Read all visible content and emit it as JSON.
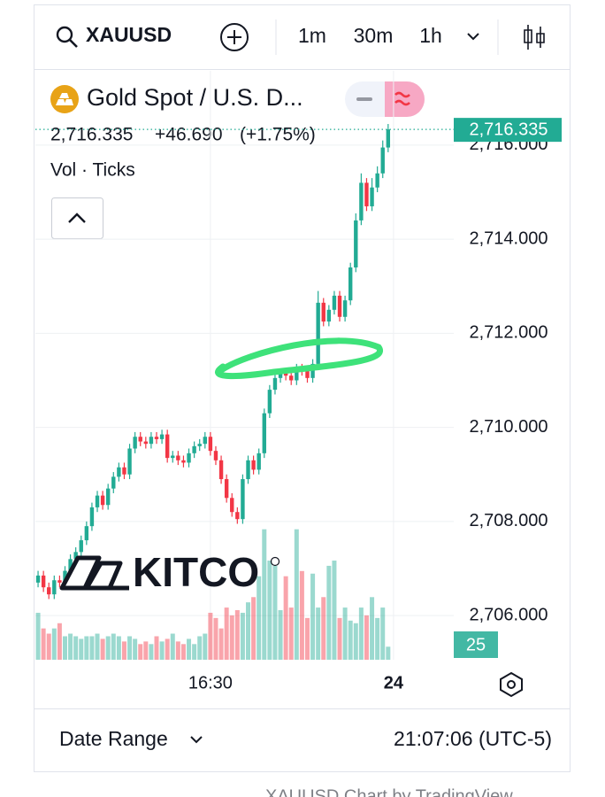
{
  "toolbar": {
    "symbol": "XAUUSD",
    "intervals": [
      "1m",
      "30m",
      "1h"
    ],
    "active_interval": 0
  },
  "chart_data": {
    "type": "candlestick",
    "title": "Gold Spot / U.S. D...",
    "legend": {
      "price": "2,716.335",
      "change": "+46.690",
      "change_pct": "(+1.75%)"
    },
    "volume_title": "Vol · Ticks",
    "watermark": "KITCO",
    "up_color": "#22ab94",
    "down_color": "#f23645",
    "open": [
      2706.7,
      2706.85,
      2706.6,
      2706.45,
      2706.75,
      2706.7,
      2706.95,
      2707.2,
      2707.35,
      2707.6,
      2707.9,
      2708.3,
      2708.55,
      2708.35,
      2708.7,
      2708.95,
      2709.15,
      2709.0,
      2709.55,
      2709.8,
      2709.7,
      2709.65,
      2709.8,
      2709.75,
      2709.85,
      2709.35,
      2709.4,
      2709.3,
      2709.25,
      2709.45,
      2709.6,
      2709.65,
      2709.8,
      2709.5,
      2709.3,
      2708.9,
      2708.5,
      2708.2,
      2708.05,
      2708.9,
      2709.3,
      2709.1,
      2709.45,
      2710.3,
      2710.8,
      2711.05,
      2711.15,
      2711.1,
      2711.0,
      2711.25,
      2711.2,
      2711.05,
      2711.35,
      2712.65,
      2712.25,
      2712.5,
      2712.8,
      2712.35,
      2712.7,
      2713.4,
      2714.4,
      2715.2,
      2714.7,
      2715.1,
      2715.4,
      2715.95
    ],
    "high": [
      2706.95,
      2706.95,
      2706.7,
      2706.85,
      2706.85,
      2707.05,
      2707.3,
      2707.45,
      2707.7,
      2708.0,
      2708.4,
      2708.65,
      2708.65,
      2708.8,
      2709.05,
      2709.25,
      2709.25,
      2709.65,
      2709.9,
      2709.9,
      2709.8,
      2709.9,
      2709.9,
      2709.95,
      2709.95,
      2709.5,
      2709.5,
      2709.4,
      2709.55,
      2709.7,
      2709.75,
      2709.9,
      2709.9,
      2709.6,
      2709.4,
      2709.0,
      2708.6,
      2708.3,
      2709.0,
      2709.4,
      2709.4,
      2709.55,
      2710.4,
      2710.9,
      2711.15,
      2711.25,
      2711.25,
      2711.2,
      2711.35,
      2711.35,
      2711.3,
      2711.45,
      2712.9,
      2712.75,
      2712.6,
      2712.9,
      2712.9,
      2712.8,
      2713.5,
      2714.55,
      2715.4,
      2715.3,
      2715.3,
      2715.55,
      2716.1,
      2716.45
    ],
    "low": [
      2706.6,
      2706.5,
      2706.35,
      2706.35,
      2706.6,
      2706.6,
      2706.85,
      2707.1,
      2707.25,
      2707.5,
      2707.8,
      2708.2,
      2708.25,
      2708.25,
      2708.6,
      2708.85,
      2708.9,
      2708.9,
      2709.45,
      2709.6,
      2709.55,
      2709.55,
      2709.65,
      2709.65,
      2709.25,
      2709.25,
      2709.2,
      2709.15,
      2709.15,
      2709.35,
      2709.5,
      2709.55,
      2709.4,
      2709.2,
      2708.8,
      2708.4,
      2708.1,
      2707.95,
      2707.95,
      2708.8,
      2709.0,
      2709.0,
      2709.35,
      2710.2,
      2710.7,
      2710.95,
      2711.0,
      2710.9,
      2710.9,
      2711.1,
      2710.95,
      2710.95,
      2711.25,
      2712.15,
      2712.15,
      2712.4,
      2712.25,
      2712.25,
      2712.6,
      2713.3,
      2714.3,
      2714.6,
      2714.6,
      2715.0,
      2715.3,
      2715.85
    ],
    "close": [
      2706.85,
      2706.6,
      2706.45,
      2706.75,
      2706.7,
      2706.95,
      2707.2,
      2707.35,
      2707.6,
      2707.9,
      2708.3,
      2708.55,
      2708.35,
      2708.7,
      2708.95,
      2709.15,
      2709.0,
      2709.55,
      2709.8,
      2709.7,
      2709.65,
      2709.8,
      2709.75,
      2709.85,
      2709.35,
      2709.4,
      2709.3,
      2709.25,
      2709.45,
      2709.6,
      2709.65,
      2709.8,
      2709.5,
      2709.3,
      2708.9,
      2708.5,
      2708.2,
      2708.05,
      2708.9,
      2709.3,
      2709.1,
      2709.45,
      2710.3,
      2710.8,
      2711.05,
      2711.15,
      2711.1,
      2711.0,
      2711.25,
      2711.2,
      2711.05,
      2711.35,
      2712.65,
      2712.25,
      2712.5,
      2712.8,
      2712.35,
      2712.7,
      2713.4,
      2714.4,
      2715.2,
      2714.7,
      2715.1,
      2715.4,
      2715.95,
      2716.335
    ],
    "volume": [
      90,
      60,
      50,
      60,
      70,
      45,
      50,
      45,
      40,
      45,
      45,
      50,
      40,
      45,
      50,
      45,
      35,
      45,
      40,
      30,
      35,
      30,
      45,
      35,
      40,
      50,
      35,
      30,
      40,
      30,
      45,
      50,
      90,
      80,
      60,
      100,
      85,
      95,
      90,
      110,
      120,
      160,
      250,
      190,
      180,
      95,
      160,
      100,
      250,
      170,
      80,
      165,
      100,
      120,
      180,
      190,
      80,
      100,
      75,
      70,
      100,
      85,
      120,
      80,
      100,
      25
    ],
    "last_price_label": "2,716.335",
    "xlim": [
      -0.5,
      67
    ],
    "xticks": [
      {
        "value": 32,
        "label": "16:30"
      },
      {
        "value": 66,
        "label": "24"
      }
    ],
    "ylim": [
      2705.06,
      2717.58
    ],
    "yticks": [
      {
        "value": 2706,
        "label": "2,706.000"
      },
      {
        "value": 2708,
        "label": "2,708.000"
      },
      {
        "value": 2710,
        "label": "2,710.000"
      },
      {
        "value": 2712,
        "label": "2,712.000"
      },
      {
        "value": 2714,
        "label": "2,714.000"
      },
      {
        "value": 2716,
        "label": "2,716.000"
      }
    ],
    "vlim": [
      0,
      280
    ],
    "grid": true
  },
  "footer": {
    "date_range": "Date Range",
    "time": "21:07:06 (UTC-5)",
    "credit": "XAUUSD Chart by TradingView"
  }
}
